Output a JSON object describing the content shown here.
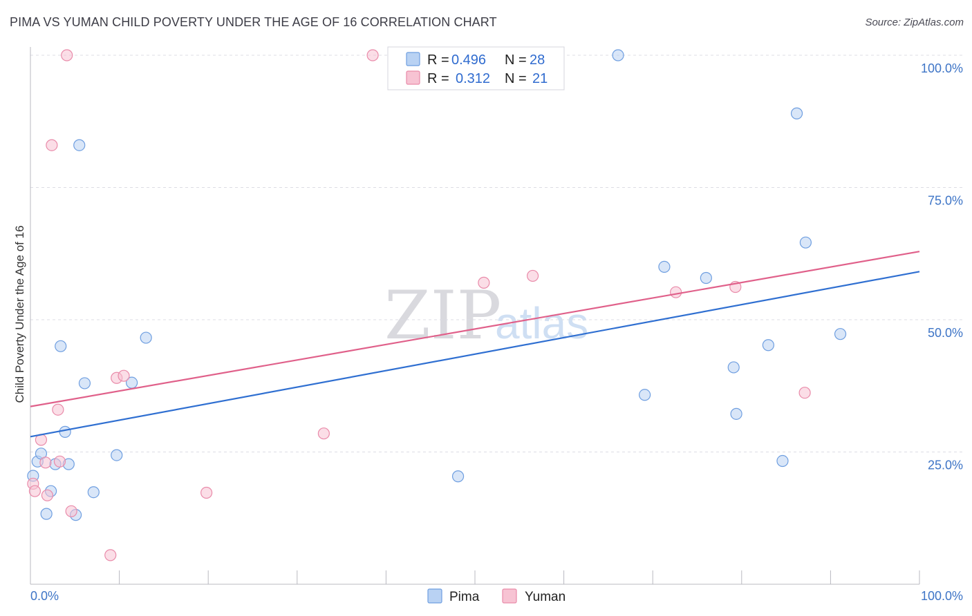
{
  "title": "PIMA VS YUMAN CHILD POVERTY UNDER THE AGE OF 16 CORRELATION CHART",
  "source": "Source: ZipAtlas.com",
  "colors": {
    "pima_fill": "#b9d2f3",
    "pima_stroke": "#6e9ee0",
    "pima_line": "#2f6fd1",
    "yuman_fill": "#f7c3d3",
    "yuman_stroke": "#e98aa9",
    "yuman_line": "#e0608a",
    "tick_label": "#3d74c6",
    "grid": "#dcdce4"
  },
  "legend": {
    "rows": [
      {
        "series": "Pima",
        "r_label": "R =",
        "r_value": "0.496",
        "n_label": "N =",
        "n_value": "28"
      },
      {
        "series": "Yuman",
        "r_label": "R =",
        "r_value": "0.312",
        "n_label": "N =",
        "n_value": "21"
      }
    ]
  },
  "watermark": {
    "zip": "ZIP",
    "atlas": "atlas"
  },
  "chart_data": {
    "type": "scatter",
    "title": "PIMA VS YUMAN CHILD POVERTY UNDER THE AGE OF 16 CORRELATION CHART",
    "xlabel": "",
    "ylabel": "Child Poverty Under the Age of 16",
    "xlim": [
      0,
      100
    ],
    "ylim": [
      0,
      100
    ],
    "x_tick_labels": [
      {
        "value": 0,
        "label": "0.0%"
      },
      {
        "value": 100,
        "label": "100.0%"
      }
    ],
    "y_tick_labels": [
      {
        "value": 25,
        "label": "25.0%"
      },
      {
        "value": 50,
        "label": "50.0%"
      },
      {
        "value": 75,
        "label": "75.0%"
      },
      {
        "value": 100,
        "label": "100.0%"
      }
    ],
    "grid": true,
    "series": [
      {
        "name": "Pima",
        "points": [
          [
            0.3,
            20.5
          ],
          [
            0.8,
            23.2
          ],
          [
            1.2,
            24.7
          ],
          [
            1.8,
            13.3
          ],
          [
            2.3,
            17.6
          ],
          [
            2.8,
            22.7
          ],
          [
            3.4,
            45.0
          ],
          [
            3.9,
            28.8
          ],
          [
            4.3,
            22.7
          ],
          [
            5.1,
            13.1
          ],
          [
            5.5,
            83.0
          ],
          [
            6.1,
            38.0
          ],
          [
            7.1,
            17.4
          ],
          [
            9.7,
            24.4
          ],
          [
            11.4,
            38.1
          ],
          [
            13.0,
            46.6
          ],
          [
            48.1,
            20.4
          ],
          [
            66.1,
            100.0
          ],
          [
            69.1,
            35.8
          ],
          [
            71.3,
            60.0
          ],
          [
            76.0,
            57.9
          ],
          [
            79.1,
            41.0
          ],
          [
            79.4,
            32.2
          ],
          [
            83.0,
            45.2
          ],
          [
            84.6,
            23.3
          ],
          [
            86.2,
            89.0
          ],
          [
            87.2,
            64.6
          ],
          [
            91.1,
            47.3
          ]
        ],
        "trend": {
          "x": [
            0,
            100
          ],
          "y": [
            27.9,
            59.1
          ]
        }
      },
      {
        "name": "Yuman",
        "points": [
          [
            0.3,
            19.0
          ],
          [
            0.5,
            17.6
          ],
          [
            1.2,
            27.3
          ],
          [
            1.7,
            23.0
          ],
          [
            1.9,
            16.8
          ],
          [
            2.4,
            83.0
          ],
          [
            3.1,
            33.0
          ],
          [
            3.3,
            23.2
          ],
          [
            4.1,
            100.0
          ],
          [
            4.6,
            13.8
          ],
          [
            9.0,
            5.5
          ],
          [
            9.7,
            39.0
          ],
          [
            10.5,
            39.4
          ],
          [
            19.8,
            17.3
          ],
          [
            33.0,
            28.5
          ],
          [
            38.5,
            100.0
          ],
          [
            51.0,
            57.0
          ],
          [
            56.5,
            58.3
          ],
          [
            72.6,
            55.2
          ],
          [
            79.3,
            56.2
          ],
          [
            87.1,
            36.2
          ]
        ],
        "trend": {
          "x": [
            0,
            100
          ],
          "y": [
            33.6,
            62.9
          ]
        }
      }
    ],
    "legend_position": "top-center",
    "bottom_legend": [
      "Pima",
      "Yuman"
    ]
  }
}
